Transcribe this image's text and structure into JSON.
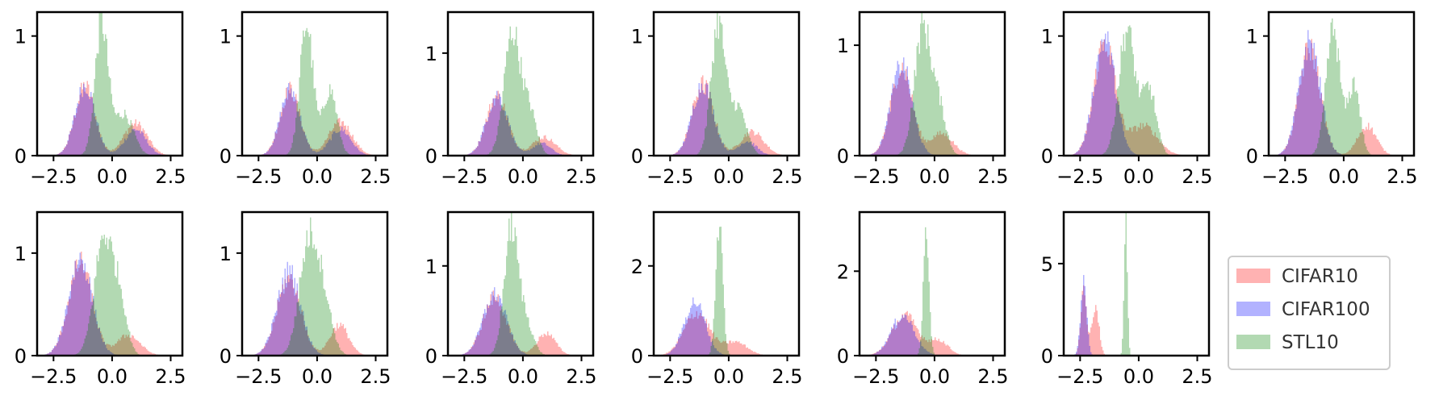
{
  "figure": {
    "layout": "2 rows x 7 columns of histogram panels; last cell of row 2 holds the legend",
    "legend_placement": "bottom-right",
    "bar_alpha": 0.3
  },
  "legend": [
    {
      "label": "CIFAR10",
      "color": "#ff0000"
    },
    {
      "label": "CIFAR100",
      "color": "#0000ff"
    },
    {
      "label": "STL10",
      "color": "#008000"
    }
  ],
  "chart_data": [
    {
      "type": "histogram",
      "xlim": [
        -3.2,
        3.0
      ],
      "ylim": [
        0,
        1.2
      ],
      "xticks": [
        -2.5,
        0.0,
        2.5
      ],
      "xtick_labels": [
        "−2.5",
        "0.0",
        "2.5"
      ],
      "yticks": [
        0,
        1
      ],
      "ytick_labels": [
        "0",
        "1"
      ],
      "series": [
        {
          "name": "CIFAR10",
          "color": "#ff0000",
          "components": [
            {
              "mu": -1.15,
              "sigma": 0.42,
              "peak": 0.58
            },
            {
              "mu": 1.0,
              "sigma": 0.5,
              "peak": 0.27
            }
          ]
        },
        {
          "name": "CIFAR100",
          "color": "#0000ff",
          "components": [
            {
              "mu": -1.15,
              "sigma": 0.42,
              "peak": 0.59
            },
            {
              "mu": 1.0,
              "sigma": 0.45,
              "peak": 0.22
            }
          ]
        },
        {
          "name": "STL10",
          "color": "#008000",
          "components": [
            {
              "mu": -0.45,
              "sigma": 0.28,
              "peak": 1.1
            },
            {
              "mu": 0.5,
              "sigma": 0.4,
              "peak": 0.35
            }
          ]
        }
      ]
    },
    {
      "type": "histogram",
      "xlim": [
        -3.2,
        3.0
      ],
      "ylim": [
        0,
        1.2
      ],
      "xticks": [
        -2.5,
        0.0,
        2.5
      ],
      "xtick_labels": [
        "−2.5",
        "0.0",
        "2.5"
      ],
      "yticks": [
        0,
        1
      ],
      "ytick_labels": [
        "0",
        "1"
      ],
      "series": [
        {
          "name": "CIFAR10",
          "color": "#ff0000",
          "components": [
            {
              "mu": -1.15,
              "sigma": 0.42,
              "peak": 0.55
            },
            {
              "mu": 1.0,
              "sigma": 0.5,
              "peak": 0.28
            }
          ]
        },
        {
          "name": "CIFAR100",
          "color": "#0000ff",
          "components": [
            {
              "mu": -1.15,
              "sigma": 0.42,
              "peak": 0.55
            },
            {
              "mu": 1.0,
              "sigma": 0.45,
              "peak": 0.22
            }
          ]
        },
        {
          "name": "STL10",
          "color": "#008000",
          "components": [
            {
              "mu": -0.45,
              "sigma": 0.28,
              "peak": 1.1
            },
            {
              "mu": 0.55,
              "sigma": 0.3,
              "peak": 0.55
            }
          ]
        }
      ]
    },
    {
      "type": "histogram",
      "xlim": [
        -3.2,
        3.0
      ],
      "ylim": [
        0,
        1.4
      ],
      "xticks": [
        -2.5,
        0.0,
        2.5
      ],
      "xtick_labels": [
        "−2.5",
        "0.0",
        "2.5"
      ],
      "yticks": [
        0,
        1
      ],
      "ytick_labels": [
        "0",
        "1"
      ],
      "series": [
        {
          "name": "CIFAR10",
          "color": "#ff0000",
          "components": [
            {
              "mu": -1.1,
              "sigma": 0.45,
              "peak": 0.58
            },
            {
              "mu": 0.9,
              "sigma": 0.5,
              "peak": 0.18
            }
          ]
        },
        {
          "name": "CIFAR100",
          "color": "#0000ff",
          "components": [
            {
              "mu": -1.1,
              "sigma": 0.45,
              "peak": 0.59
            },
            {
              "mu": 0.8,
              "sigma": 0.4,
              "peak": 0.12
            }
          ]
        },
        {
          "name": "STL10",
          "color": "#008000",
          "components": [
            {
              "mu": -0.45,
              "sigma": 0.35,
              "peak": 1.2
            },
            {
              "mu": 0.3,
              "sigma": 0.3,
              "peak": 0.4
            }
          ]
        }
      ]
    },
    {
      "type": "histogram",
      "xlim": [
        -3.2,
        3.0
      ],
      "ylim": [
        0,
        1.2
      ],
      "xticks": [
        -2.5,
        0.0,
        2.5
      ],
      "xtick_labels": [
        "−2.5",
        "0.0",
        "2.5"
      ],
      "yticks": [
        0,
        1
      ],
      "ytick_labels": [
        "0",
        "1"
      ],
      "series": [
        {
          "name": "CIFAR10",
          "color": "#ff0000",
          "components": [
            {
              "mu": -1.1,
              "sigma": 0.45,
              "peak": 0.6
            },
            {
              "mu": 1.0,
              "sigma": 0.5,
              "peak": 0.2
            }
          ]
        },
        {
          "name": "CIFAR100",
          "color": "#0000ff",
          "components": [
            {
              "mu": -1.1,
              "sigma": 0.45,
              "peak": 0.6
            },
            {
              "mu": 0.8,
              "sigma": 0.4,
              "peak": 0.12
            }
          ]
        },
        {
          "name": "STL10",
          "color": "#008000",
          "components": [
            {
              "mu": -0.45,
              "sigma": 0.3,
              "peak": 1.1
            },
            {
              "mu": 0.4,
              "sigma": 0.35,
              "peak": 0.4
            }
          ]
        }
      ]
    },
    {
      "type": "histogram",
      "xlim": [
        -3.2,
        3.0
      ],
      "ylim": [
        0,
        1.3
      ],
      "xticks": [
        -2.5,
        0.0,
        2.5
      ],
      "xtick_labels": [
        "−2.5",
        "0.0",
        "2.5"
      ],
      "yticks": [
        0,
        1
      ],
      "ytick_labels": [
        "0",
        "1"
      ],
      "series": [
        {
          "name": "CIFAR10",
          "color": "#ff0000",
          "components": [
            {
              "mu": -1.4,
              "sigma": 0.45,
              "peak": 0.8
            },
            {
              "mu": 0.3,
              "sigma": 0.5,
              "peak": 0.2
            }
          ]
        },
        {
          "name": "CIFAR100",
          "color": "#0000ff",
          "components": [
            {
              "mu": -1.4,
              "sigma": 0.45,
              "peak": 0.82
            }
          ]
        },
        {
          "name": "STL10",
          "color": "#008000",
          "components": [
            {
              "mu": -0.5,
              "sigma": 0.35,
              "peak": 1.15
            },
            {
              "mu": 0.2,
              "sigma": 0.3,
              "peak": 0.4
            }
          ]
        }
      ]
    },
    {
      "type": "histogram",
      "xlim": [
        -3.2,
        3.0
      ],
      "ylim": [
        0,
        1.2
      ],
      "xticks": [
        -2.5,
        0.0,
        2.5
      ],
      "xtick_labels": [
        "−2.5",
        "0.0",
        "2.5"
      ],
      "yticks": [
        0,
        1
      ],
      "ytick_labels": [
        "0",
        "1"
      ],
      "series": [
        {
          "name": "CIFAR10",
          "color": "#ff0000",
          "components": [
            {
              "mu": -1.45,
              "sigma": 0.45,
              "peak": 0.95
            },
            {
              "mu": 0.2,
              "sigma": 0.6,
              "peak": 0.25
            }
          ]
        },
        {
          "name": "CIFAR100",
          "color": "#0000ff",
          "components": [
            {
              "mu": -1.45,
              "sigma": 0.45,
              "peak": 0.98
            }
          ]
        },
        {
          "name": "STL10",
          "color": "#008000",
          "components": [
            {
              "mu": -0.5,
              "sigma": 0.35,
              "peak": 1.05
            },
            {
              "mu": 0.45,
              "sigma": 0.3,
              "peak": 0.55
            }
          ]
        }
      ]
    },
    {
      "type": "histogram",
      "xlim": [
        -3.2,
        3.0
      ],
      "ylim": [
        0,
        1.2
      ],
      "xticks": [
        -2.5,
        0.0,
        2.5
      ],
      "xtick_labels": [
        "−2.5",
        "0.0",
        "2.5"
      ],
      "yticks": [
        0,
        1
      ],
      "ytick_labels": [
        "0",
        "1"
      ],
      "series": [
        {
          "name": "CIFAR10",
          "color": "#ff0000",
          "components": [
            {
              "mu": -1.45,
              "sigma": 0.45,
              "peak": 0.9
            },
            {
              "mu": 1.0,
              "sigma": 0.4,
              "peak": 0.25
            }
          ]
        },
        {
          "name": "CIFAR100",
          "color": "#0000ff",
          "components": [
            {
              "mu": -1.45,
              "sigma": 0.45,
              "peak": 0.95
            }
          ]
        },
        {
          "name": "STL10",
          "color": "#008000",
          "components": [
            {
              "mu": -0.45,
              "sigma": 0.3,
              "peak": 1.05
            },
            {
              "mu": 0.45,
              "sigma": 0.25,
              "peak": 0.6
            }
          ]
        }
      ]
    },
    {
      "type": "histogram",
      "xlim": [
        -3.2,
        3.0
      ],
      "ylim": [
        0,
        1.4
      ],
      "xticks": [
        -2.5,
        0.0,
        2.5
      ],
      "xtick_labels": [
        "−2.5",
        "0.0",
        "2.5"
      ],
      "yticks": [
        0,
        1
      ],
      "ytick_labels": [
        "0",
        "1"
      ],
      "series": [
        {
          "name": "CIFAR10",
          "color": "#ff0000",
          "components": [
            {
              "mu": -1.35,
              "sigma": 0.5,
              "peak": 0.9
            },
            {
              "mu": 0.7,
              "sigma": 0.5,
              "peak": 0.2
            }
          ]
        },
        {
          "name": "CIFAR100",
          "color": "#0000ff",
          "components": [
            {
              "mu": -1.35,
              "sigma": 0.5,
              "peak": 0.95
            }
          ]
        },
        {
          "name": "STL10",
          "color": "#008000",
          "components": [
            {
              "mu": -0.35,
              "sigma": 0.4,
              "peak": 1.15
            },
            {
              "mu": 0.35,
              "sigma": 0.3,
              "peak": 0.45
            }
          ]
        }
      ]
    },
    {
      "type": "histogram",
      "xlim": [
        -3.2,
        3.0
      ],
      "ylim": [
        0,
        1.4
      ],
      "xticks": [
        -2.5,
        0.0,
        2.5
      ],
      "xtick_labels": [
        "−2.5",
        "0.0",
        "2.5"
      ],
      "yticks": [
        0,
        1
      ],
      "ytick_labels": [
        "0",
        "1"
      ],
      "series": [
        {
          "name": "CIFAR10",
          "color": "#ff0000",
          "components": [
            {
              "mu": -1.2,
              "sigma": 0.5,
              "peak": 0.75
            },
            {
              "mu": 0.95,
              "sigma": 0.4,
              "peak": 0.3
            }
          ]
        },
        {
          "name": "CIFAR100",
          "color": "#0000ff",
          "components": [
            {
              "mu": -1.2,
              "sigma": 0.5,
              "peak": 0.82
            }
          ]
        },
        {
          "name": "STL10",
          "color": "#008000",
          "components": [
            {
              "mu": -0.35,
              "sigma": 0.4,
              "peak": 1.1
            },
            {
              "mu": 0.3,
              "sigma": 0.35,
              "peak": 0.45
            }
          ]
        }
      ]
    },
    {
      "type": "histogram",
      "xlim": [
        -3.2,
        3.0
      ],
      "ylim": [
        0,
        1.6
      ],
      "xticks": [
        -2.5,
        0.0,
        2.5
      ],
      "xtick_labels": [
        "−2.5",
        "0.0",
        "2.5"
      ],
      "yticks": [
        0,
        1
      ],
      "ytick_labels": [
        "0",
        "1"
      ],
      "series": [
        {
          "name": "CIFAR10",
          "color": "#ff0000",
          "components": [
            {
              "mu": -1.2,
              "sigma": 0.5,
              "peak": 0.65
            },
            {
              "mu": 1.0,
              "sigma": 0.4,
              "peak": 0.25
            }
          ]
        },
        {
          "name": "CIFAR100",
          "color": "#0000ff",
          "components": [
            {
              "mu": -1.2,
              "sigma": 0.5,
              "peak": 0.68
            }
          ]
        },
        {
          "name": "STL10",
          "color": "#008000",
          "components": [
            {
              "mu": -0.5,
              "sigma": 0.3,
              "peak": 1.4
            },
            {
              "mu": 0.15,
              "sigma": 0.3,
              "peak": 0.35
            }
          ]
        }
      ]
    },
    {
      "type": "histogram",
      "xlim": [
        -3.2,
        3.0
      ],
      "ylim": [
        0,
        3.2
      ],
      "xticks": [
        -2.5,
        0.0,
        2.5
      ],
      "xtick_labels": [
        "−2.5",
        "0.0",
        "2.5"
      ],
      "yticks": [
        0,
        2
      ],
      "ytick_labels": [
        "0",
        "2"
      ],
      "series": [
        {
          "name": "CIFAR10",
          "color": "#ff0000",
          "components": [
            {
              "mu": -1.35,
              "sigma": 0.55,
              "peak": 0.95
            },
            {
              "mu": 0.3,
              "sigma": 0.5,
              "peak": 0.3
            }
          ]
        },
        {
          "name": "CIFAR100",
          "color": "#0000ff",
          "components": [
            {
              "mu": -1.45,
              "sigma": 0.45,
              "peak": 1.2
            }
          ]
        },
        {
          "name": "STL10",
          "color": "#008000",
          "components": [
            {
              "mu": -0.4,
              "sigma": 0.15,
              "peak": 2.8
            }
          ]
        }
      ]
    },
    {
      "type": "histogram",
      "xlim": [
        -3.2,
        3.0
      ],
      "ylim": [
        0,
        3.4
      ],
      "xticks": [
        -2.5,
        0.0,
        2.5
      ],
      "xtick_labels": [
        "−2.5",
        "0.0",
        "2.5"
      ],
      "yticks": [
        0,
        2
      ],
      "ytick_labels": [
        "0",
        "2"
      ],
      "series": [
        {
          "name": "CIFAR10",
          "color": "#ff0000",
          "components": [
            {
              "mu": -1.25,
              "sigma": 0.55,
              "peak": 0.95
            },
            {
              "mu": 0.2,
              "sigma": 0.4,
              "peak": 0.35
            }
          ]
        },
        {
          "name": "CIFAR100",
          "color": "#0000ff",
          "components": [
            {
              "mu": -1.35,
              "sigma": 0.5,
              "peak": 0.95
            }
          ]
        },
        {
          "name": "STL10",
          "color": "#008000",
          "components": [
            {
              "mu": -0.35,
              "sigma": 0.12,
              "peak": 3.0
            }
          ]
        }
      ]
    },
    {
      "type": "histogram",
      "xlim": [
        -3.2,
        3.0
      ],
      "ylim": [
        0,
        7.8
      ],
      "xticks": [
        -2.5,
        0.0,
        2.5
      ],
      "xtick_labels": [
        "−2.5",
        "0.0",
        "2.5"
      ],
      "yticks": [
        0,
        5
      ],
      "ytick_labels": [
        "0",
        "5"
      ],
      "series": [
        {
          "name": "CIFAR10",
          "color": "#ff0000",
          "components": [
            {
              "mu": -2.35,
              "sigma": 0.12,
              "peak": 3.6
            },
            {
              "mu": -1.85,
              "sigma": 0.15,
              "peak": 2.8
            }
          ]
        },
        {
          "name": "CIFAR100",
          "color": "#0000ff",
          "components": [
            {
              "mu": -2.35,
              "sigma": 0.13,
              "peak": 3.9
            }
          ]
        },
        {
          "name": "STL10",
          "color": "#008000",
          "components": [
            {
              "mu": -0.55,
              "sigma": 0.07,
              "peak": 7.3
            }
          ]
        }
      ]
    }
  ]
}
